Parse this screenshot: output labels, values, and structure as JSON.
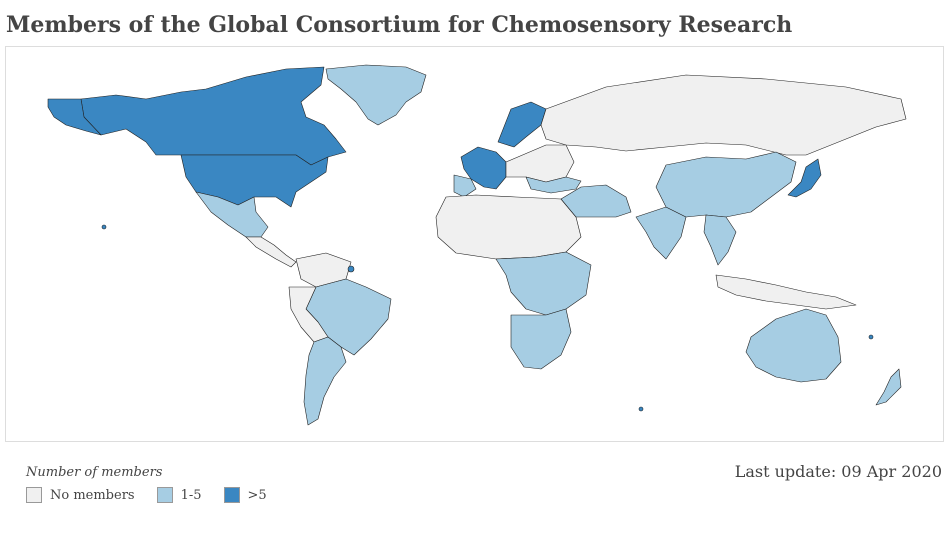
{
  "title": "Members of the Global Consortium for Chemosensory Research",
  "legend": {
    "title": "Number of members",
    "items": [
      {
        "label": "No members",
        "color": "#f0f0f0"
      },
      {
        "label": "1-5",
        "color": "#a6cde3"
      },
      {
        "label": ">5",
        "color": "#3a87c2"
      }
    ]
  },
  "last_update": "Last update: 09 Apr 2020",
  "colors": {
    "no_members": "#f0f0f0",
    "low": "#a6cde3",
    "high": "#3a87c2",
    "border": "#222222"
  }
}
